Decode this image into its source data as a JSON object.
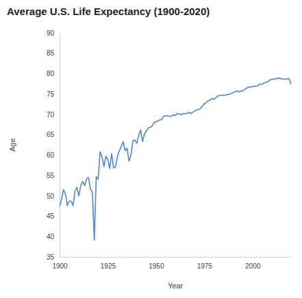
{
  "chart_data": {
    "type": "line",
    "title": "Average U.S. Life Expectancy (1900-2020)",
    "x_label": "Year",
    "y_label": "Age",
    "color": "#4a86e8",
    "x": [
      1900,
      1901,
      1902,
      1903,
      1904,
      1905,
      1906,
      1907,
      1908,
      1909,
      1910,
      1911,
      1912,
      1913,
      1914,
      1915,
      1916,
      1917,
      1918,
      1919,
      1920,
      1921,
      1922,
      1923,
      1924,
      1925,
      1926,
      1927,
      1928,
      1929,
      1930,
      1931,
      1932,
      1933,
      1934,
      1935,
      1936,
      1937,
      1938,
      1939,
      1940,
      1941,
      1942,
      1943,
      1944,
      1945,
      1946,
      1947,
      1948,
      1949,
      1950,
      1951,
      1952,
      1953,
      1954,
      1955,
      1956,
      1957,
      1958,
      1959,
      1960,
      1961,
      1962,
      1963,
      1964,
      1965,
      1966,
      1967,
      1968,
      1969,
      1970,
      1971,
      1972,
      1973,
      1974,
      1975,
      1976,
      1977,
      1978,
      1979,
      1980,
      1981,
      1982,
      1983,
      1984,
      1985,
      1986,
      1987,
      1988,
      1989,
      1990,
      1991,
      1992,
      1993,
      1994,
      1995,
      1996,
      1997,
      1998,
      1999,
      2000,
      2001,
      2002,
      2003,
      2004,
      2005,
      2006,
      2007,
      2008,
      2009,
      2010,
      2011,
      2012,
      2013,
      2014,
      2015,
      2016,
      2017,
      2018,
      2019,
      2020
    ],
    "values": [
      47.3,
      49.1,
      51.5,
      50.5,
      47.6,
      48.7,
      48.7,
      47.6,
      51.1,
      52.1,
      50.0,
      52.6,
      53.5,
      52.5,
      54.2,
      54.5,
      51.7,
      50.9,
      39.1,
      54.7,
      54.1,
      60.8,
      59.6,
      57.2,
      59.7,
      59.0,
      56.7,
      60.4,
      56.8,
      57.1,
      59.7,
      61.1,
      62.1,
      63.3,
      61.1,
      61.7,
      58.5,
      60.0,
      63.5,
      63.7,
      62.9,
      64.8,
      66.2,
      63.3,
      65.2,
      65.9,
      66.7,
      66.8,
      67.2,
      68.0,
      68.2,
      68.4,
      68.6,
      68.8,
      69.6,
      69.6,
      69.7,
      69.5,
      69.6,
      69.9,
      69.7,
      70.2,
      70.1,
      69.9,
      70.2,
      70.2,
      70.2,
      70.5,
      70.2,
      70.5,
      70.8,
      71.1,
      71.2,
      71.4,
      72.0,
      72.6,
      72.9,
      73.3,
      73.5,
      73.9,
      73.7,
      74.1,
      74.5,
      74.6,
      74.7,
      74.7,
      74.7,
      74.9,
      74.9,
      75.1,
      75.4,
      75.5,
      75.8,
      75.5,
      75.7,
      75.8,
      76.1,
      76.5,
      76.7,
      76.7,
      76.8,
      76.9,
      76.9,
      77.1,
      77.5,
      77.4,
      77.7,
      77.9,
      78.0,
      78.4,
      78.6,
      78.6,
      78.8,
      78.8,
      78.9,
      78.7,
      78.7,
      78.6,
      78.7,
      78.8,
      77.3
    ],
    "xlim": [
      1900,
      2020
    ],
    "xticks": [
      1900,
      1925,
      1950,
      1975,
      2000
    ],
    "ylim": [
      35,
      90
    ],
    "yticks": [
      35,
      40,
      45,
      50,
      55,
      60,
      65,
      70,
      75,
      80,
      85,
      90
    ],
    "grid": false
  }
}
